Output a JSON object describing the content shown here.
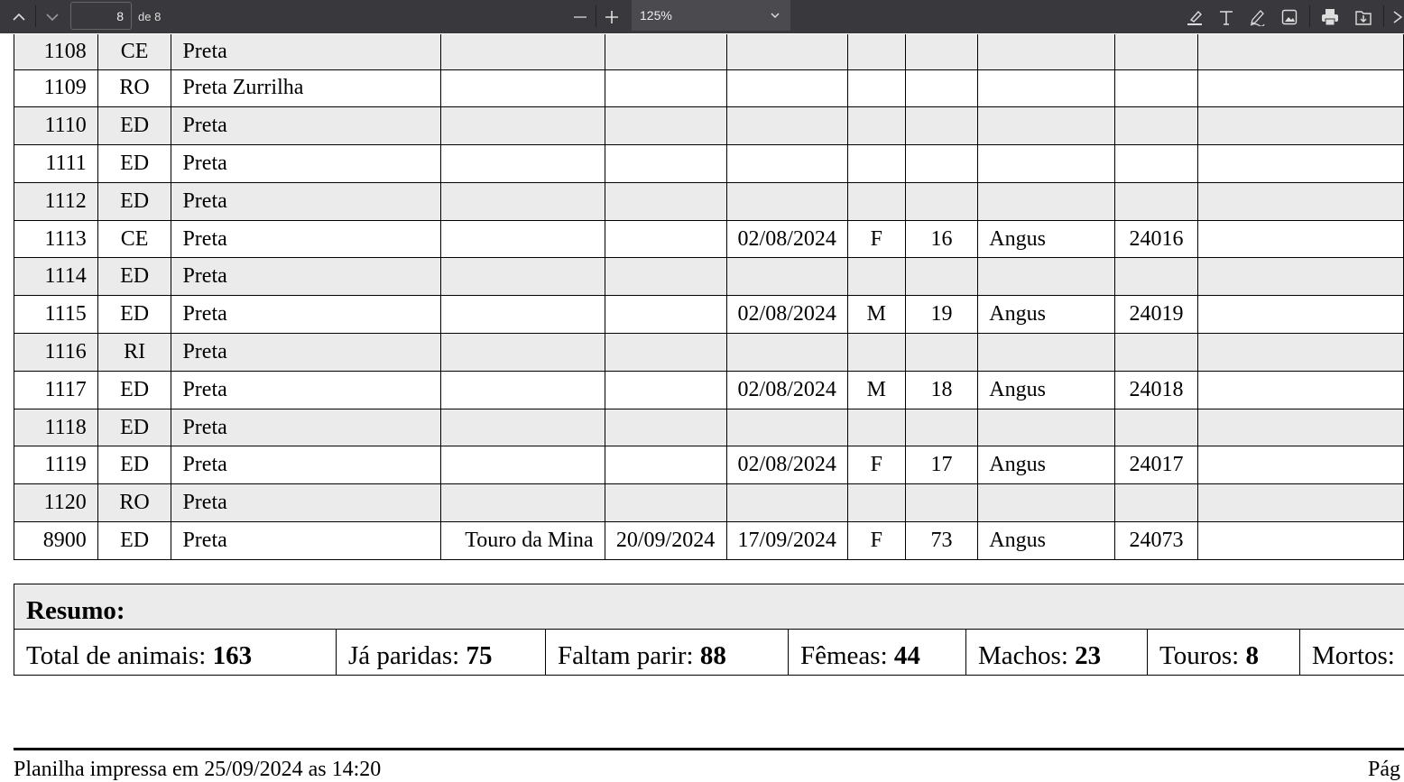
{
  "toolbar": {
    "page_current": "8",
    "page_total_label": "de 8",
    "zoom": "125%"
  },
  "columns_widths_note": "",
  "rows": [
    [
      "1108",
      "CE",
      "Preta",
      "",
      "",
      "",
      "",
      "",
      "",
      ""
    ],
    [
      "1109",
      "RO",
      "Preta Zurrilha",
      "",
      "",
      "",
      "",
      "",
      "",
      ""
    ],
    [
      "1110",
      "ED",
      "Preta",
      "",
      "",
      "",
      "",
      "",
      "",
      ""
    ],
    [
      "1111",
      "ED",
      "Preta",
      "",
      "",
      "",
      "",
      "",
      "",
      ""
    ],
    [
      "1112",
      "ED",
      "Preta",
      "",
      "",
      "",
      "",
      "",
      "",
      ""
    ],
    [
      "1113",
      "CE",
      "Preta",
      "",
      "",
      "02/08/2024",
      "F",
      "16",
      "Angus",
      "24016"
    ],
    [
      "1114",
      "ED",
      "Preta",
      "",
      "",
      "",
      "",
      "",
      "",
      ""
    ],
    [
      "1115",
      "ED",
      "Preta",
      "",
      "",
      "02/08/2024",
      "M",
      "19",
      "Angus",
      "24019"
    ],
    [
      "1116",
      "RI",
      "Preta",
      "",
      "",
      "",
      "",
      "",
      "",
      ""
    ],
    [
      "1117",
      "ED",
      "Preta",
      "",
      "",
      "02/08/2024",
      "M",
      "18",
      "Angus",
      "24018"
    ],
    [
      "1118",
      "ED",
      "Preta",
      "",
      "",
      "",
      "",
      "",
      "",
      ""
    ],
    [
      "1119",
      "ED",
      "Preta",
      "",
      "",
      "02/08/2024",
      "F",
      "17",
      "Angus",
      "24017"
    ],
    [
      "1120",
      "RO",
      "Preta",
      "",
      "",
      "",
      "",
      "",
      "",
      ""
    ],
    [
      "8900",
      "ED",
      "Preta",
      "Touro da Mina",
      "20/09/2024",
      "17/09/2024",
      "F",
      "73",
      "Angus",
      "24073"
    ]
  ],
  "summary": {
    "title": "Resumo:",
    "items": [
      {
        "label": "Total de animais: ",
        "value": "163"
      },
      {
        "label": "Já paridas: ",
        "value": "75"
      },
      {
        "label": "Faltam parir: ",
        "value": "88"
      },
      {
        "label": "Fêmeas: ",
        "value": "44"
      },
      {
        "label": "Machos: ",
        "value": "23"
      },
      {
        "label": "Touros: ",
        "value": "8"
      },
      {
        "label": "Mortos:",
        "value": ""
      }
    ]
  },
  "footer": {
    "printed": "Planilha impressa em 25/09/2024 as 14:20",
    "page": "Pág"
  }
}
